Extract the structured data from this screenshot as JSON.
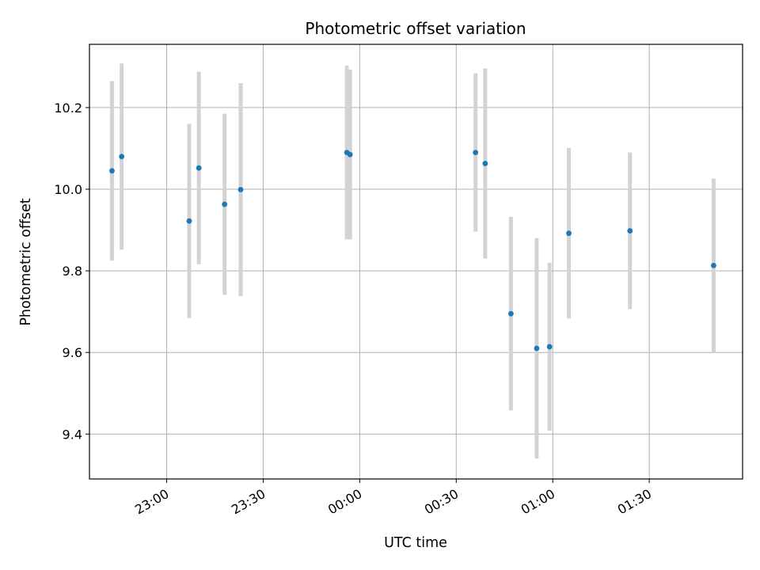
{
  "chart_data": {
    "type": "scatter",
    "title": "Photometric offset variation",
    "xlabel": "UTC time",
    "ylabel": "Photometric offset",
    "x_axis_type": "time",
    "xlim": [
      "22:36",
      "01:59"
    ],
    "ylim": [
      9.29,
      10.355
    ],
    "x_ticks": [
      "23:00",
      "23:30",
      "00:00",
      "00:30",
      "01:00",
      "01:30"
    ],
    "y_ticks": [
      9.4,
      9.6,
      9.8,
      10.0,
      10.2
    ],
    "y_tick_labels": [
      "9.4",
      "9.6",
      "9.8",
      "10.0",
      "10.2"
    ],
    "grid": true,
    "point_color": "#1f77b4",
    "errorbar_color": "#d3d3d3",
    "points": [
      {
        "x": "22:43",
        "y": 10.045,
        "err": 0.22
      },
      {
        "x": "22:46",
        "y": 10.08,
        "err": 0.228
      },
      {
        "x": "23:07",
        "y": 9.922,
        "err": 0.238
      },
      {
        "x": "23:10",
        "y": 10.052,
        "err": 0.236
      },
      {
        "x": "23:18",
        "y": 9.963,
        "err": 0.222
      },
      {
        "x": "23:23",
        "y": 9.999,
        "err": 0.261
      },
      {
        "x": "23:56",
        "y": 10.09,
        "err": 0.213
      },
      {
        "x": "23:57",
        "y": 10.085,
        "err": 0.208
      },
      {
        "x": "00:36",
        "y": 10.09,
        "err": 0.194
      },
      {
        "x": "00:39",
        "y": 10.063,
        "err": 0.233
      },
      {
        "x": "00:47",
        "y": 9.695,
        "err": 0.237
      },
      {
        "x": "00:55",
        "y": 9.61,
        "err": 0.27
      },
      {
        "x": "00:59",
        "y": 9.614,
        "err": 0.206
      },
      {
        "x": "01:05",
        "y": 9.892,
        "err": 0.209
      },
      {
        "x": "01:24",
        "y": 9.898,
        "err": 0.192
      },
      {
        "x": "01:50",
        "y": 9.813,
        "err": 0.213
      }
    ]
  }
}
